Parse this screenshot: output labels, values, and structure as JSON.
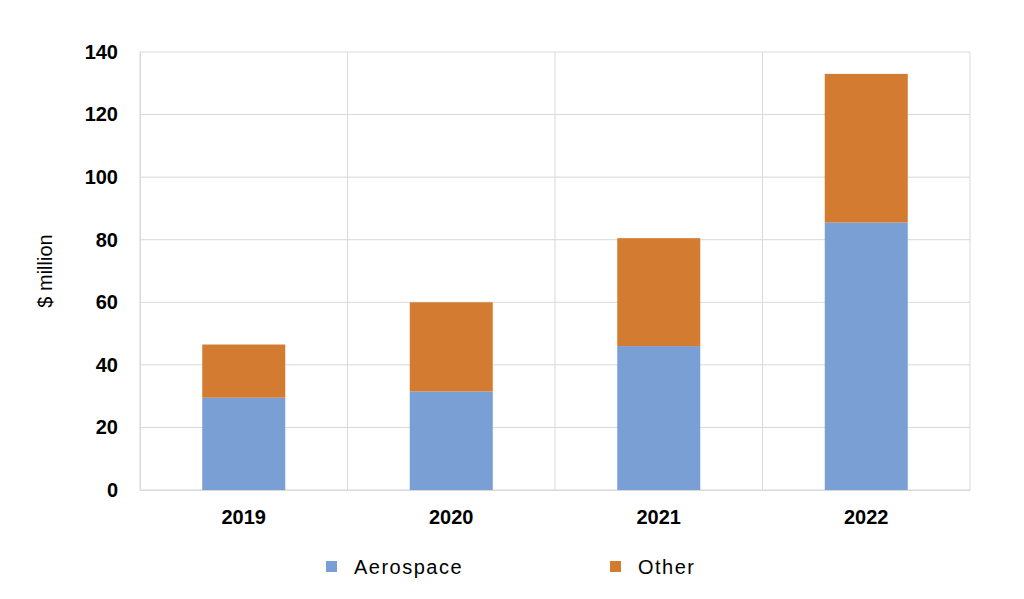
{
  "chart_data": {
    "type": "bar",
    "stacked": true,
    "categories": [
      "2019",
      "2020",
      "2021",
      "2022"
    ],
    "series": [
      {
        "name": "Aerospace",
        "color": "#7a9fd4",
        "values": [
          29.5,
          31.5,
          46,
          85.5
        ]
      },
      {
        "name": "Other",
        "color": "#d27b31",
        "values": [
          17,
          28.5,
          34.5,
          47.5
        ]
      }
    ],
    "y_label": "$ million",
    "ylim": [
      0,
      140
    ],
    "yticks": [
      0,
      20,
      40,
      60,
      80,
      100,
      120,
      140
    ],
    "grid": true,
    "legend": "bottom"
  }
}
